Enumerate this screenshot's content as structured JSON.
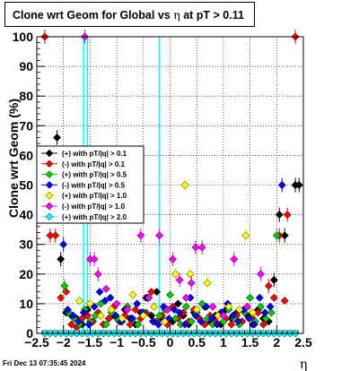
{
  "title": {
    "prefix": "Clone wrt Geom for Global vs",
    "symbol": "η",
    "suffix": "at pT > 0.11"
  },
  "timestamp": "Fri Dec 13 07:35:45 2024",
  "chart_data": {
    "type": "scatter",
    "title": "Clone wrt Geom for Global vs η at pT > 0.11",
    "xlabel": "η",
    "ylabel": "Clone wrt Geom (%)",
    "xlim": [
      -2.5,
      2.5
    ],
    "ylim": [
      0,
      100
    ],
    "x_ticks": [
      "−2.5",
      "−2",
      "−1.5",
      "−1",
      "−0.5",
      "0",
      "0.5",
      "1",
      "1.5",
      "2",
      "2.5"
    ],
    "y_ticks": [
      "0",
      "10",
      "20",
      "30",
      "40",
      "50",
      "60",
      "70",
      "80",
      "90",
      "100"
    ],
    "grid": true,
    "legend_position": "left-middle",
    "series": [
      {
        "name": "(+) with pT/|q| > 0.1",
        "color": "#000000",
        "x": [
          -2.12,
          -2.05,
          -1.95,
          -1.85,
          -1.75,
          -1.65,
          -1.55,
          -1.45,
          -1.35,
          -1.25,
          -1.15,
          -1.05,
          -0.95,
          -0.85,
          -0.75,
          -0.65,
          -0.55,
          -0.45,
          -0.35,
          -0.25,
          -0.15,
          -0.05,
          0.05,
          0.15,
          0.25,
          0.35,
          0.45,
          0.55,
          0.65,
          0.75,
          0.85,
          0.95,
          1.05,
          1.15,
          1.25,
          1.35,
          1.45,
          1.55,
          1.65,
          1.75,
          1.85,
          1.95,
          2.05,
          2.15,
          2.35,
          2.42
        ],
        "y": [
          66,
          25,
          7,
          6,
          5,
          3,
          8,
          4,
          7,
          3,
          5,
          6,
          4,
          8,
          5,
          3,
          7,
          12,
          6,
          14,
          5,
          8,
          4,
          10,
          6,
          3,
          7,
          5,
          9,
          4,
          6,
          3,
          8,
          5,
          7,
          4,
          6,
          3,
          8,
          5,
          4,
          18,
          40,
          33,
          50,
          50
        ]
      },
      {
        "name": "(-) with pT/|q| > 0.1",
        "color": "#ff0000",
        "x": [
          -2.35,
          -2.25,
          -2.15,
          -2.05,
          -1.95,
          -1.85,
          -1.75,
          -1.65,
          -1.55,
          -1.45,
          -1.35,
          -1.25,
          -1.15,
          -1.05,
          -0.95,
          -0.85,
          -0.75,
          -0.65,
          -0.55,
          -0.45,
          -0.35,
          -0.25,
          -0.15,
          -0.05,
          0.05,
          0.15,
          0.25,
          0.35,
          0.45,
          0.55,
          0.65,
          0.75,
          0.85,
          0.95,
          1.05,
          1.15,
          1.25,
          1.35,
          1.45,
          1.55,
          1.65,
          1.75,
          1.85,
          1.95,
          2.05,
          2.15,
          2.2,
          2.35
        ],
        "y": [
          100,
          33,
          33,
          12,
          14,
          3,
          2,
          5,
          6,
          4,
          7,
          3,
          5,
          9,
          4,
          6,
          3,
          8,
          5,
          7,
          14,
          4,
          6,
          3,
          9,
          5,
          7,
          4,
          8,
          5,
          3,
          6,
          4,
          7,
          5,
          3,
          6,
          4,
          9,
          5,
          7,
          3,
          16,
          12,
          33,
          11,
          40,
          100
        ]
      },
      {
        "name": "(+) with pT/|q| > 0.5",
        "color": "#00cc00",
        "x": [
          -1.98,
          -1.9,
          -1.8,
          -1.7,
          -1.6,
          -1.5,
          -1.4,
          -1.3,
          -1.2,
          -1.1,
          -1.0,
          -0.9,
          -0.8,
          -0.7,
          -0.6,
          -0.5,
          -0.4,
          -0.3,
          -0.2,
          -0.1,
          0.0,
          0.1,
          0.2,
          0.3,
          0.4,
          0.5,
          0.6,
          0.7,
          0.8,
          0.9,
          1.0,
          1.1,
          1.2,
          1.3,
          1.4,
          1.5,
          1.6,
          1.7,
          1.8,
          1.9,
          2.0
        ],
        "y": [
          16,
          7,
          5,
          3,
          8,
          4,
          6,
          10,
          3,
          7,
          5,
          4,
          9,
          5,
          3,
          7,
          12,
          4,
          6,
          8,
          13,
          5,
          3,
          9,
          4,
          7,
          10,
          5,
          3,
          6,
          4,
          8,
          5,
          3,
          7,
          12,
          4,
          9,
          5,
          7,
          33
        ]
      },
      {
        "name": "(-) with pT/|q| > 0.5",
        "color": "#0000ff",
        "x": [
          -2.0,
          -1.92,
          -1.82,
          -1.72,
          -1.62,
          -1.52,
          -1.42,
          -1.32,
          -1.22,
          -1.12,
          -1.02,
          -0.92,
          -0.82,
          -0.72,
          -0.62,
          -0.52,
          -0.42,
          -0.32,
          -0.22,
          -0.12,
          -0.02,
          0.08,
          0.18,
          0.28,
          0.38,
          0.48,
          0.58,
          0.68,
          0.78,
          0.88,
          0.98,
          1.08,
          1.18,
          1.28,
          1.38,
          1.48,
          1.58,
          1.68,
          1.78,
          1.88,
          2.1
        ],
        "y": [
          30,
          8,
          6,
          4,
          7,
          3,
          9,
          14,
          11,
          12,
          6,
          4,
          8,
          5,
          10,
          7,
          12,
          4,
          3,
          9,
          5,
          8,
          7,
          3,
          12,
          6,
          4,
          9,
          5,
          3,
          7,
          10,
          6,
          4,
          8,
          5,
          3,
          12,
          7,
          9,
          50
        ]
      },
      {
        "name": "(+) with pT/|q| > 1.0",
        "color": "#ffff00",
        "x": [
          -1.7,
          -1.5,
          -1.3,
          -1.1,
          -0.9,
          -0.7,
          -0.5,
          -0.3,
          -0.1,
          0.1,
          0.28,
          0.38,
          0.5,
          0.7,
          0.9,
          1.1,
          1.3,
          1.42,
          1.55
        ],
        "y": [
          11,
          10,
          6,
          8,
          5,
          13,
          6,
          9,
          4,
          20,
          50,
          20,
          8,
          17,
          6,
          9,
          8,
          33,
          7
        ]
      },
      {
        "name": "(-) with pT/|q| > 1.0",
        "color": "#ff00ff",
        "x": [
          -1.6,
          -1.5,
          -1.42,
          -1.35,
          -1.2,
          -1.0,
          -0.8,
          -0.55,
          -0.4,
          -0.2,
          -0.05,
          0.05,
          0.18,
          0.3,
          0.4,
          0.48,
          0.6,
          0.8,
          1.0,
          1.2,
          1.45,
          1.7
        ],
        "y": [
          100,
          25,
          25,
          20,
          15,
          10,
          8,
          33,
          12,
          33,
          8,
          25,
          18,
          12,
          17,
          29,
          29,
          9,
          6,
          25,
          9,
          20
        ]
      },
      {
        "name": "(+) with pT/|q| > 2.0",
        "color": "#00ffff",
        "x": [
          -2.35,
          -2.25,
          -2.15,
          -2.05,
          -1.95,
          -1.85,
          -1.75,
          -1.65,
          -1.55,
          -1.45,
          -1.35,
          -1.25,
          -1.15,
          -1.05,
          -0.95,
          -0.85,
          -0.75,
          -0.65,
          -0.55,
          -0.45,
          -0.35,
          -0.25,
          -0.15,
          -0.05,
          0.05,
          0.15,
          0.25,
          0.35,
          0.45,
          0.55,
          0.65,
          0.75,
          0.85,
          0.95,
          1.05,
          1.15,
          1.25,
          1.35,
          1.45,
          1.55,
          1.65,
          1.75,
          1.85,
          1.95,
          2.05,
          2.15,
          2.25,
          2.35
        ],
        "y": [
          0,
          0,
          0,
          0,
          0,
          0,
          0,
          0,
          0,
          0,
          0,
          0,
          0,
          0,
          0,
          0,
          0,
          0,
          0,
          0,
          0,
          0,
          0,
          0,
          0,
          0,
          0,
          0,
          0,
          0,
          0,
          0,
          0,
          0,
          0,
          0,
          0,
          0,
          0,
          0,
          0,
          0,
          0,
          0,
          0,
          0,
          0,
          0
        ]
      }
    ]
  }
}
